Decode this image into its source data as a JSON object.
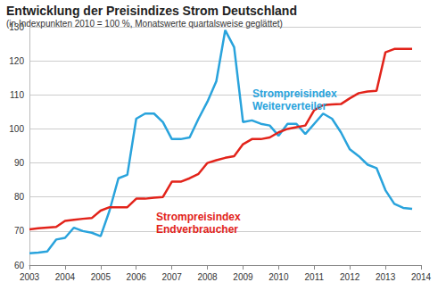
{
  "chart_data": {
    "type": "line",
    "title": "Entwicklung der Preisindizes Strom Deutschland",
    "subtitle": "(in Indexpunkten 2010 = 100 %, Monatswerte quartalsweise geglättet)",
    "x": [
      2003,
      2003.25,
      2003.5,
      2003.75,
      2004,
      2004.25,
      2004.5,
      2004.75,
      2005,
      2005.25,
      2005.5,
      2005.75,
      2006,
      2006.25,
      2006.5,
      2006.75,
      2007,
      2007.25,
      2007.5,
      2007.75,
      2008,
      2008.25,
      2008.5,
      2008.75,
      2009,
      2009.25,
      2009.5,
      2009.75,
      2010,
      2010.25,
      2010.5,
      2010.75,
      2011,
      2011.25,
      2011.5,
      2011.75,
      2012,
      2012.25,
      2012.5,
      2012.75,
      2013,
      2013.25,
      2013.5,
      2013.75
    ],
    "series": [
      {
        "name": "Strompreisindex Weiterverteiler",
        "color": "#29a3dc",
        "values": [
          63.5,
          63.7,
          64,
          67.5,
          68,
          71,
          70,
          69.5,
          68.5,
          76,
          85.5,
          86.5,
          103,
          104.5,
          104.5,
          102,
          97,
          97,
          97.5,
          103,
          108,
          114,
          129,
          124,
          102,
          102.5,
          101.5,
          101,
          98,
          101.5,
          101.5,
          98.5,
          101.5,
          104.5,
          103,
          99,
          94,
          92,
          89.5,
          88.5,
          82,
          78,
          76.8,
          76.5
        ]
      },
      {
        "name": "Strompreisindex Endverbraucher",
        "color": "#e2231a",
        "values": [
          70.5,
          70.8,
          71,
          71.2,
          73,
          73.3,
          73.6,
          73.8,
          76,
          77,
          77,
          77,
          79.5,
          79.5,
          79.8,
          80,
          84.5,
          84.5,
          85.5,
          86.8,
          90,
          90.8,
          91.5,
          92,
          95.5,
          97,
          97,
          97.5,
          99,
          100,
          100.5,
          101,
          105.5,
          107,
          107.2,
          107.3,
          109,
          110.5,
          111,
          111.2,
          122.5,
          123.5,
          123.5,
          123.5
        ]
      }
    ],
    "xlim": [
      2003,
      2014
    ],
    "xticks": [
      2003,
      2004,
      2005,
      2006,
      2007,
      2008,
      2009,
      2010,
      2011,
      2012,
      2013,
      2014
    ],
    "ylim": [
      60,
      130
    ],
    "yticks": [
      60,
      70,
      80,
      90,
      100,
      110,
      120,
      130
    ],
    "grid": true
  }
}
